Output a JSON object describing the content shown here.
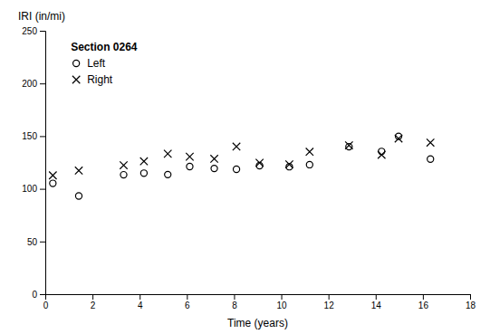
{
  "chart_data": {
    "type": "scatter",
    "title": "Section 0264",
    "xlabel": "Time (years)",
    "ylabel": "IRI (in/mi)",
    "x": [
      0.32,
      1.42,
      3.32,
      4.18,
      5.19,
      6.12,
      7.16,
      8.1,
      9.08,
      10.34,
      11.2,
      12.87,
      14.25,
      14.97,
      16.32
    ],
    "series": [
      {
        "name": "Left",
        "color": "#000000",
        "marker": "circle",
        "values": [
          105.18,
          93.18,
          113.34,
          114.85,
          113.52,
          121.17,
          119.33,
          118.53,
          122.03,
          120.96,
          122.91,
          139.97,
          135.47,
          149.82,
          128.2
        ]
      },
      {
        "name": "Right",
        "color": "#000000",
        "marker": "x",
        "values": [
          112.75,
          117.29,
          122.37,
          126.09,
          133.28,
          130.46,
          128.51,
          140.11,
          124.68,
          123.21,
          135.17,
          141.31,
          132.25,
          147.71,
          143.89
        ]
      }
    ],
    "xlim": [
      0,
      18
    ],
    "ylim": [
      0,
      250
    ],
    "xticks": [
      0,
      2,
      4,
      6,
      8,
      10,
      12,
      14,
      16,
      18
    ],
    "yticks": [
      0,
      50,
      100,
      150,
      200,
      250
    ],
    "legend": "upper left",
    "grid": false
  }
}
